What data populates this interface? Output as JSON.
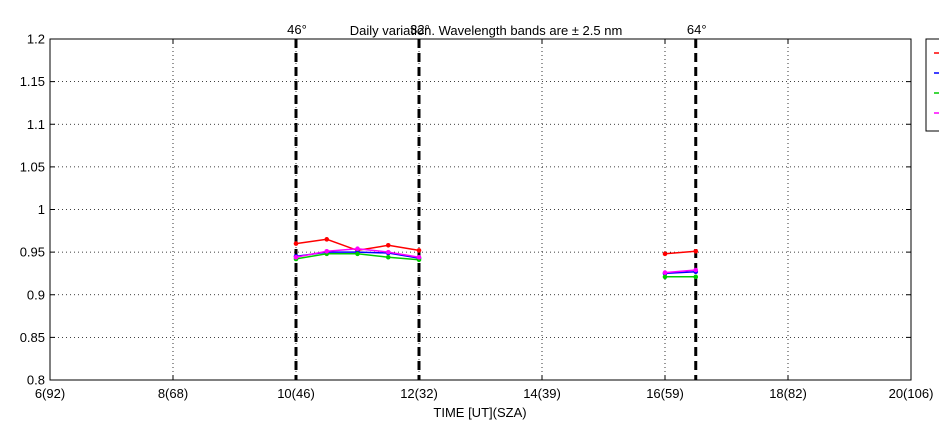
{
  "chart_data": {
    "type": "line",
    "title": "Daily variation. Wavelength bands are ± 2.5 nm",
    "xlabel": "TIME [UT](SZA)",
    "ylabel": "",
    "xlim": [
      6,
      20
    ],
    "ylim": [
      0.8,
      1.2
    ],
    "grid": "dotted",
    "legend_position": "outside-top-right",
    "x_ticks": [
      {
        "value": 6,
        "label": "6(92)"
      },
      {
        "value": 8,
        "label": "8(68)"
      },
      {
        "value": 10,
        "label": "10(46)"
      },
      {
        "value": 12,
        "label": "12(32)"
      },
      {
        "value": 14,
        "label": "14(39)"
      },
      {
        "value": 16,
        "label": "16(59)"
      },
      {
        "value": 18,
        "label": "18(82)"
      },
      {
        "value": 20,
        "label": "20(106)"
      }
    ],
    "y_ticks": [
      {
        "value": 0.8,
        "label": "0.8"
      },
      {
        "value": 0.85,
        "label": "0.85"
      },
      {
        "value": 0.9,
        "label": "0.9"
      },
      {
        "value": 0.95,
        "label": "0.95"
      },
      {
        "value": 1.0,
        "label": "1"
      },
      {
        "value": 1.05,
        "label": "1.05"
      },
      {
        "value": 1.1,
        "label": "1.1"
      },
      {
        "value": 1.15,
        "label": "1.15"
      },
      {
        "value": 1.2,
        "label": "1.2"
      }
    ],
    "vlines": [
      {
        "x": 10,
        "label": "46°"
      },
      {
        "x": 12,
        "label": "32°"
      },
      {
        "x": 16.5,
        "label": "64°"
      }
    ],
    "series": [
      {
        "color": "#ff0000",
        "segments": [
          [
            [
              10.0,
              0.96
            ],
            [
              10.5,
              0.965
            ],
            [
              11.0,
              0.952
            ],
            [
              11.5,
              0.958
            ],
            [
              12.0,
              0.952
            ]
          ],
          [
            [
              16.0,
              0.948
            ],
            [
              16.5,
              0.951
            ]
          ]
        ]
      },
      {
        "color": "#0000ff",
        "segments": [
          [
            [
              10.0,
              0.945
            ],
            [
              10.5,
              0.95
            ],
            [
              11.0,
              0.95
            ],
            [
              11.5,
              0.949
            ],
            [
              12.0,
              0.943
            ]
          ],
          [
            [
              16.0,
              0.925
            ],
            [
              16.5,
              0.927
            ]
          ]
        ]
      },
      {
        "color": "#00cc00",
        "segments": [
          [
            [
              10.0,
              0.942
            ],
            [
              10.5,
              0.948
            ],
            [
              11.0,
              0.948
            ],
            [
              11.5,
              0.944
            ],
            [
              12.0,
              0.941
            ]
          ],
          [
            [
              16.0,
              0.921
            ],
            [
              16.5,
              0.921
            ]
          ]
        ]
      },
      {
        "color": "#ff00ff",
        "segments": [
          [
            [
              10.0,
              0.944
            ],
            [
              10.5,
              0.951
            ],
            [
              11.0,
              0.954
            ],
            [
              11.5,
              0.95
            ],
            [
              12.0,
              0.944
            ]
          ],
          [
            [
              16.0,
              0.926
            ],
            [
              16.5,
              0.929
            ]
          ]
        ]
      }
    ]
  }
}
